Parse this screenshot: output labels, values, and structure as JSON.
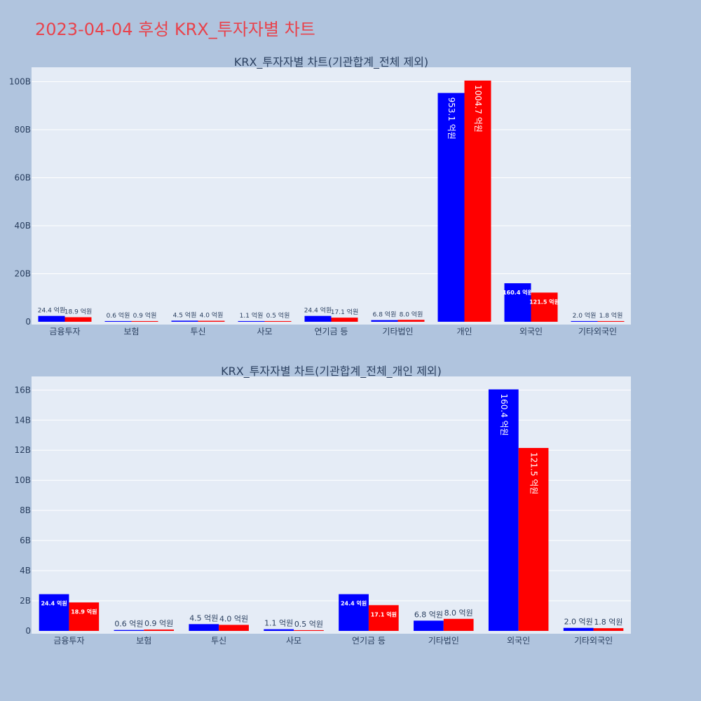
{
  "title": "2023-04-04 후성 KRX_투자자별 차트",
  "colors": {
    "buy": "#0000ff",
    "sell": "#ff0000",
    "page_bg": "#b0c4de",
    "plot_bg": "#e5ecf6",
    "title": "#e8434c"
  },
  "chart_data": [
    {
      "type": "bar",
      "title": "KRX_투자자별 차트(기관합계_전체 제외)",
      "categories": [
        "금융투자",
        "보험",
        "투신",
        "사모",
        "연기금 등",
        "기타법인",
        "개인",
        "외국인",
        "기타외국인"
      ],
      "series": [
        {
          "values": [
            2.44,
            0.06,
            0.45,
            0.11,
            2.44,
            0.68,
            95.31,
            16.04,
            0.2
          ],
          "labels": [
            "24.4 억원",
            "0.6 억원",
            "4.5 억원",
            "1.1 억원",
            "24.4 억원",
            "6.8 억원",
            "953.1 억원",
            "160.4 억원",
            "2.0 억원"
          ]
        },
        {
          "values": [
            1.89,
            0.09,
            0.4,
            0.05,
            1.71,
            0.8,
            100.47,
            12.15,
            0.18
          ],
          "labels": [
            "18.9 억원",
            "0.9 억원",
            "4.0 억원",
            "0.5 억원",
            "17.1 억원",
            "8.0 억원",
            "1004.7 억원",
            "121.5 억원",
            "1.8 억원"
          ]
        }
      ],
      "yunit": "B",
      "yticks": [
        0,
        20,
        40,
        60,
        80,
        100
      ],
      "yticklabels": [
        "0",
        "20B",
        "40B",
        "60B",
        "80B",
        "100B"
      ],
      "ylim": [
        0,
        106
      ],
      "grid": true,
      "legend": "none"
    },
    {
      "type": "bar",
      "title": "KRX_투자자별 차트(기관합계_전체_개인 제외)",
      "categories": [
        "금융투자",
        "보험",
        "투신",
        "사모",
        "연기금 등",
        "기타법인",
        "외국인",
        "기타외국인"
      ],
      "series": [
        {
          "values": [
            2.44,
            0.06,
            0.45,
            0.11,
            2.44,
            0.68,
            16.04,
            0.2
          ],
          "labels": [
            "24.4 억원",
            "0.6 억원",
            "4.5 억원",
            "1.1 억원",
            "24.4 억원",
            "6.8 억원",
            "160.4 억원",
            "2.0 억원"
          ]
        },
        {
          "values": [
            1.89,
            0.09,
            0.4,
            0.05,
            1.71,
            0.8,
            12.15,
            0.18
          ],
          "labels": [
            "18.9 억원",
            "0.9 억원",
            "4.0 억원",
            "0.5 억원",
            "17.1 억원",
            "8.0 억원",
            "121.5 억원",
            "1.8 억원"
          ]
        }
      ],
      "yunit": "B",
      "yticks": [
        0,
        2,
        4,
        6,
        8,
        10,
        12,
        14,
        16
      ],
      "yticklabels": [
        "0",
        "2B",
        "4B",
        "6B",
        "8B",
        "10B",
        "12B",
        "14B",
        "16B"
      ],
      "ylim": [
        0,
        16.9
      ],
      "grid": true,
      "legend": "none"
    }
  ]
}
